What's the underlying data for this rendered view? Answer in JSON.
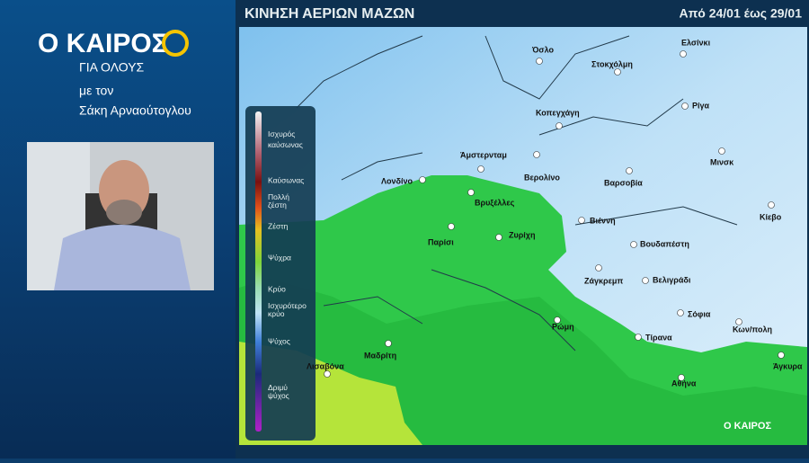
{
  "logo": {
    "title": "Ο ΚΑΙΡΟΣ",
    "subtitle": "ΓΙΑ ΟΛΟΥΣ",
    "with": "με τον",
    "presenter": "Σάκη Αρναούτογλου"
  },
  "header": {
    "title": "ΚΙΝΗΣΗ ΑΕΡΙΩΝ ΜΑΖΩΝ",
    "period": "Από 24/01 έως 29/01"
  },
  "legend": {
    "items": [
      "Ισχυρός καύσωνας",
      "Καύσωνας",
      "Πολλή ζέστη",
      "Ζέστη",
      "Ψύχρα",
      "Κρύο",
      "Ισχυρότερο κρύο",
      "Ψύχος",
      "Δριμύ ψύχος"
    ]
  },
  "map": {
    "cities": [
      "Όσλο",
      "Στοκχόλμη",
      "Ελσίνκι",
      "Κοπεγχάγη",
      "Ρίγα",
      "Μινσκ",
      "Άμστερνταμ",
      "Λονδίνο",
      "Βερολίνο",
      "Βαρσοβία",
      "Βρυξέλλες",
      "Κίεβο",
      "Βιέννη",
      "Παρίσι",
      "Ζυρίχη",
      "Βουδαπέστη",
      "Ζάγκρεμπ",
      "Βελιγράδι",
      "Ρώμη",
      "Σόφια",
      "Κων/πολη",
      "Τίρανα",
      "Μαδρίτη",
      "Λισαβόνα",
      "Αθήνα",
      "Άγκυρα"
    ],
    "watermark": "Ο ΚΑΙΡΟΣ"
  }
}
